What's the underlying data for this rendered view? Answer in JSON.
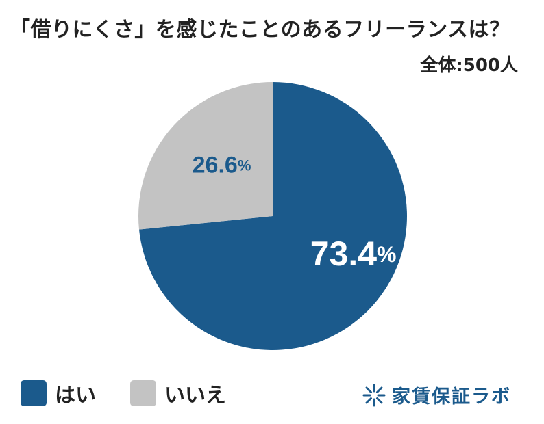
{
  "chart_data": {
    "type": "pie",
    "title": "「借りにくさ」を感じたことのあるフリーランスは？",
    "subtitle": "全体:500人",
    "categories": [
      "はい",
      "いいえ"
    ],
    "values": [
      73.4,
      26.6
    ],
    "value_suffix": "%",
    "colors": [
      "#1b5a8c",
      "#c3c3c3"
    ],
    "label_colors": [
      "#ffffff",
      "#1b5a8c"
    ],
    "legend": "bottom-left"
  },
  "brand": {
    "name": "家賃保証ラボ",
    "color": "#1b5a8c",
    "icon": "snowflake-logo-icon"
  }
}
